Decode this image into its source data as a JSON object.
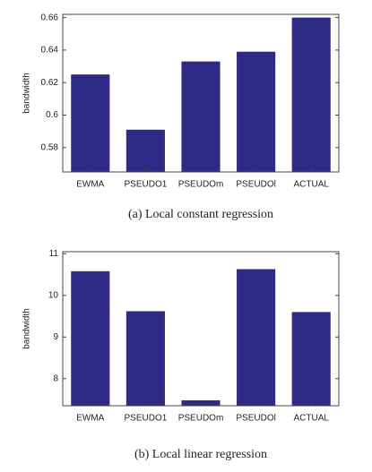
{
  "chart_data": [
    {
      "type": "bar",
      "caption": "(a) Local constant regression",
      "y_label": "bandwidth",
      "categories": [
        "EWMA",
        "PSEUDO1",
        "PSEUDOm",
        "PSEUDOl",
        "ACTUAL"
      ],
      "values": [
        0.625,
        0.591,
        0.633,
        0.639,
        0.66
      ],
      "color": "#2e2a86",
      "ylim": [
        0.565,
        0.662
      ],
      "yticks": [
        0.58,
        0.6,
        0.62,
        0.64,
        0.66
      ]
    },
    {
      "type": "bar",
      "caption": "(b) Local linear regression",
      "y_label": "bandwidth",
      "categories": [
        "EWMA",
        "PSEUDO1",
        "PSEUDOm",
        "PSEUDOl",
        "ACTUAL"
      ],
      "values": [
        10.58,
        9.62,
        7.48,
        10.63,
        9.6
      ],
      "color": "#2e2a86",
      "ylim": [
        7.35,
        11.05
      ],
      "yticks": [
        8,
        9,
        10,
        11
      ]
    }
  ]
}
